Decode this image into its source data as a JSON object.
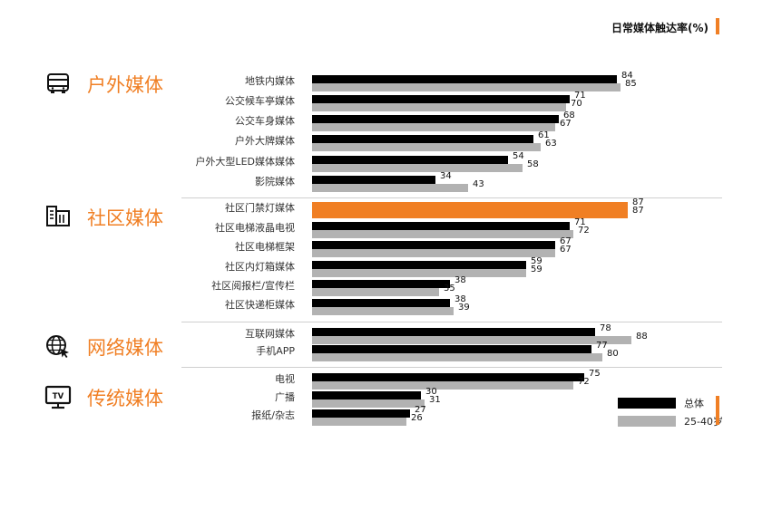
{
  "title": "日常媒体触达率(%)",
  "colors": {
    "accent": "#f07f24",
    "total": "#000000",
    "young": "#b2b2b2"
  },
  "legend": {
    "total": "总体",
    "young": "25-40岁"
  },
  "categories": [
    {
      "label": "户外媒体",
      "icon": "bus-icon"
    },
    {
      "label": "社区媒体",
      "icon": "building-icon"
    },
    {
      "label": "网络媒体",
      "icon": "globe-cursor-icon"
    },
    {
      "label": "传统媒体",
      "icon": "tv-icon"
    }
  ],
  "chart_data": {
    "type": "bar",
    "orientation": "horizontal",
    "title": "日常媒体触达率(%)",
    "categories": [
      "地铁内媒体",
      "公交候车亭媒体",
      "公交车身媒体",
      "户外大牌媒体",
      "户外大型LED媒体媒体",
      "影院媒体",
      "社区门禁灯媒体",
      "社区电梯液晶电视",
      "社区电梯框架",
      "社区内灯箱媒体",
      "社区阅报栏/宣传栏",
      "社区快递柜媒体",
      "互联网媒体",
      "手机APP",
      "电视",
      "广播",
      "报纸/杂志"
    ],
    "groups": [
      {
        "label": "户外媒体",
        "count": 6
      },
      {
        "label": "社区媒体",
        "count": 6
      },
      {
        "label": "网络媒体",
        "count": 2
      },
      {
        "label": "传统媒体",
        "count": 3
      }
    ],
    "highlight": "社区门禁灯媒体",
    "series": [
      {
        "name": "总体",
        "values": [
          84,
          71,
          68,
          61,
          54,
          34,
          87,
          71,
          67,
          59,
          38,
          38,
          78,
          77,
          75,
          30,
          27
        ]
      },
      {
        "name": "25-40岁",
        "values": [
          85,
          70,
          67,
          63,
          58,
          43,
          87,
          72,
          67,
          59,
          35,
          39,
          88,
          80,
          72,
          31,
          26
        ]
      }
    ],
    "xlim": [
      0,
      100
    ],
    "legend_position": "bottom-right"
  }
}
